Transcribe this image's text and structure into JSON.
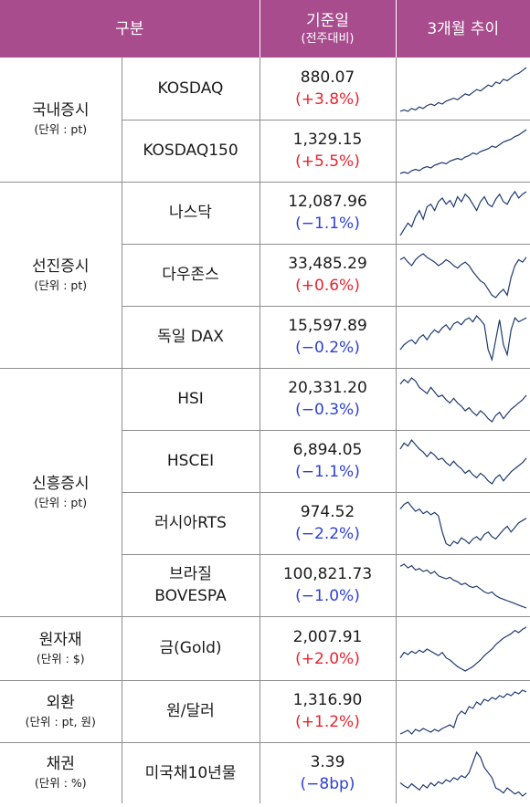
{
  "header": {
    "col1": "구분",
    "col2_line1": "기준일",
    "col2_line2": "(전주대비)",
    "col3": "3개월 추이"
  },
  "groups": [
    {
      "name": "국내증시",
      "unit": "(단위 : pt)",
      "items": [
        {
          "name": "KOSDAQ",
          "value": "880.07",
          "change": "(+3.8%)",
          "dir": "up",
          "trend": [
            40,
            41,
            40,
            42,
            41,
            43,
            42,
            44,
            45,
            44,
            46,
            45,
            47,
            48,
            49,
            48,
            50,
            52,
            51,
            53,
            55,
            54,
            56,
            58,
            57,
            60,
            59,
            62,
            61,
            63,
            65,
            66,
            68,
            70
          ]
        },
        {
          "name": "KOSDAQ150",
          "value": "1,329.15",
          "change": "(+5.5%)",
          "dir": "up",
          "trend": [
            38,
            39,
            38,
            40,
            41,
            40,
            42,
            43,
            42,
            44,
            45,
            46,
            45,
            47,
            48,
            49,
            48,
            50,
            51,
            53,
            52,
            54,
            55,
            56,
            58,
            57,
            59,
            61,
            62,
            63,
            65,
            66,
            68,
            70
          ]
        }
      ]
    },
    {
      "name": "선진증시",
      "unit": "(단위 : pt)",
      "items": [
        {
          "name": "나스닥",
          "value": "12,087.96",
          "change": "(−1.1%)",
          "dir": "down",
          "trend": [
            35,
            40,
            45,
            42,
            50,
            55,
            48,
            58,
            60,
            55,
            62,
            65,
            60,
            63,
            58,
            66,
            62,
            68,
            65,
            60,
            55,
            62,
            66,
            60,
            58,
            64,
            68,
            62,
            60,
            66,
            70,
            65,
            68,
            70
          ]
        },
        {
          "name": "다우존스",
          "value": "33,485.29",
          "change": "(+0.6%)",
          "dir": "up",
          "trend": [
            60,
            62,
            58,
            55,
            60,
            63,
            65,
            62,
            60,
            58,
            55,
            57,
            60,
            58,
            55,
            53,
            56,
            58,
            55,
            50,
            46,
            42,
            40,
            35,
            30,
            28,
            32,
            35,
            30,
            45,
            55,
            60,
            58,
            62
          ]
        },
        {
          "name": "독일 DAX",
          "value": "15,597.89",
          "change": "(−0.2%)",
          "dir": "down",
          "trend": [
            30,
            35,
            38,
            40,
            36,
            42,
            45,
            40,
            46,
            50,
            47,
            52,
            55,
            50,
            56,
            58,
            55,
            60,
            62,
            58,
            64,
            60,
            55,
            30,
            20,
            40,
            60,
            35,
            25,
            50,
            62,
            58,
            60,
            62
          ]
        }
      ]
    },
    {
      "name": "신흥증시",
      "unit": "(단위 : pt)",
      "items": [
        {
          "name": "HSI",
          "value": "20,331.20",
          "change": "(−0.3%)",
          "dir": "down",
          "trend": [
            62,
            65,
            63,
            66,
            64,
            60,
            58,
            56,
            60,
            57,
            54,
            55,
            52,
            50,
            53,
            50,
            48,
            45,
            47,
            44,
            42,
            45,
            43,
            40,
            38,
            42,
            44,
            40,
            43,
            46,
            48,
            50,
            52,
            55
          ]
        },
        {
          "name": "HSCEI",
          "value": "6,894.05",
          "change": "(−1.1%)",
          "dir": "down",
          "trend": [
            60,
            64,
            62,
            66,
            63,
            60,
            58,
            55,
            58,
            56,
            53,
            54,
            51,
            49,
            52,
            49,
            47,
            44,
            46,
            43,
            41,
            44,
            42,
            39,
            37,
            41,
            43,
            39,
            42,
            45,
            47,
            49,
            51,
            54
          ]
        },
        {
          "name": "러시아RTS",
          "value": "974.52",
          "change": "(−2.2%)",
          "dir": "down",
          "trend": [
            60,
            64,
            66,
            62,
            58,
            60,
            56,
            58,
            55,
            57,
            54,
            40,
            30,
            28,
            32,
            30,
            35,
            33,
            30,
            34,
            36,
            33,
            38,
            40,
            36,
            34,
            38,
            42,
            45,
            40,
            44,
            48,
            50,
            52
          ]
        },
        {
          "name": "브라질\nBOVESPA",
          "value": "100,821.73",
          "change": "(−1.0%)",
          "dir": "down",
          "trend": [
            65,
            68,
            63,
            66,
            60,
            62,
            58,
            60,
            55,
            58,
            52,
            50,
            48,
            50,
            46,
            44,
            40,
            42,
            38,
            36,
            38,
            34,
            30,
            28,
            30,
            25,
            22,
            20,
            18,
            16,
            14,
            12,
            10,
            8
          ]
        }
      ]
    },
    {
      "name": "원자재",
      "unit": "(단위 : $)",
      "items": [
        {
          "name": "금(Gold)",
          "value": "2,007.91",
          "change": "(+2.0%)",
          "dir": "up",
          "trend": [
            40,
            45,
            43,
            46,
            44,
            47,
            45,
            48,
            46,
            44,
            42,
            45,
            40,
            38,
            35,
            32,
            30,
            28,
            30,
            32,
            35,
            38,
            42,
            45,
            48,
            52,
            55,
            58,
            60,
            62,
            65,
            63,
            66,
            68
          ]
        }
      ]
    },
    {
      "name": "외환",
      "unit": "(단위 : pt, 원)",
      "items": [
        {
          "name": "원/달러",
          "value": "1,316.90",
          "change": "(+1.2%)",
          "dir": "up",
          "trend": [
            20,
            22,
            24,
            20,
            25,
            23,
            26,
            24,
            22,
            25,
            23,
            26,
            28,
            30,
            27,
            40,
            45,
            42,
            50,
            48,
            55,
            52,
            58,
            56,
            60,
            58,
            62,
            60,
            64,
            62,
            66,
            64,
            68,
            66
          ]
        }
      ]
    },
    {
      "name": "채권",
      "unit": "(단위 : %)",
      "items": [
        {
          "name": "미국채10년물",
          "value": "3.39",
          "change": "(−8bp)",
          "dir": "down",
          "trend": [
            35,
            32,
            30,
            34,
            31,
            28,
            33,
            30,
            35,
            32,
            36,
            34,
            38,
            36,
            40,
            38,
            42,
            40,
            45,
            55,
            65,
            60,
            50,
            45,
            40,
            30,
            28,
            25,
            30,
            27,
            24,
            26,
            22,
            25
          ]
        }
      ]
    }
  ]
}
